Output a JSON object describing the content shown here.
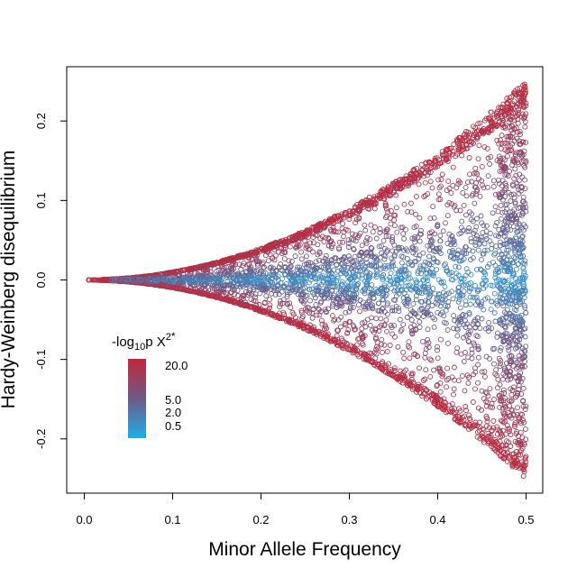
{
  "chart_data": {
    "type": "scatter",
    "xlabel": "Minor Allele Frequency",
    "ylabel": "Hardy-Weinberg disequilibrium",
    "xlim": [
      0,
      0.5
    ],
    "ylim": [
      -0.25,
      0.25
    ],
    "x_ticks": [
      "0.0",
      "0.1",
      "0.2",
      "0.3",
      "0.4",
      "0.5"
    ],
    "y_ticks": [
      "-0.2",
      "-0.1",
      "0.0",
      "0.1",
      "0.2"
    ],
    "grid": false,
    "marker": "open-circle",
    "color_scale": {
      "title_base": "-log",
      "title_sub": "10",
      "title_mid": "p X",
      "title_sup": "2",
      "title_tail": "*",
      "low_color": "#1eaee8",
      "mid_color": "#6e5a86",
      "high_color": "#c0283a",
      "labels": [
        "20.0",
        "5.0",
        "2.0",
        "0.5"
      ],
      "values": [
        20.0,
        5.0,
        2.0,
        0.5
      ]
    },
    "legend_position": "lower-left"
  }
}
